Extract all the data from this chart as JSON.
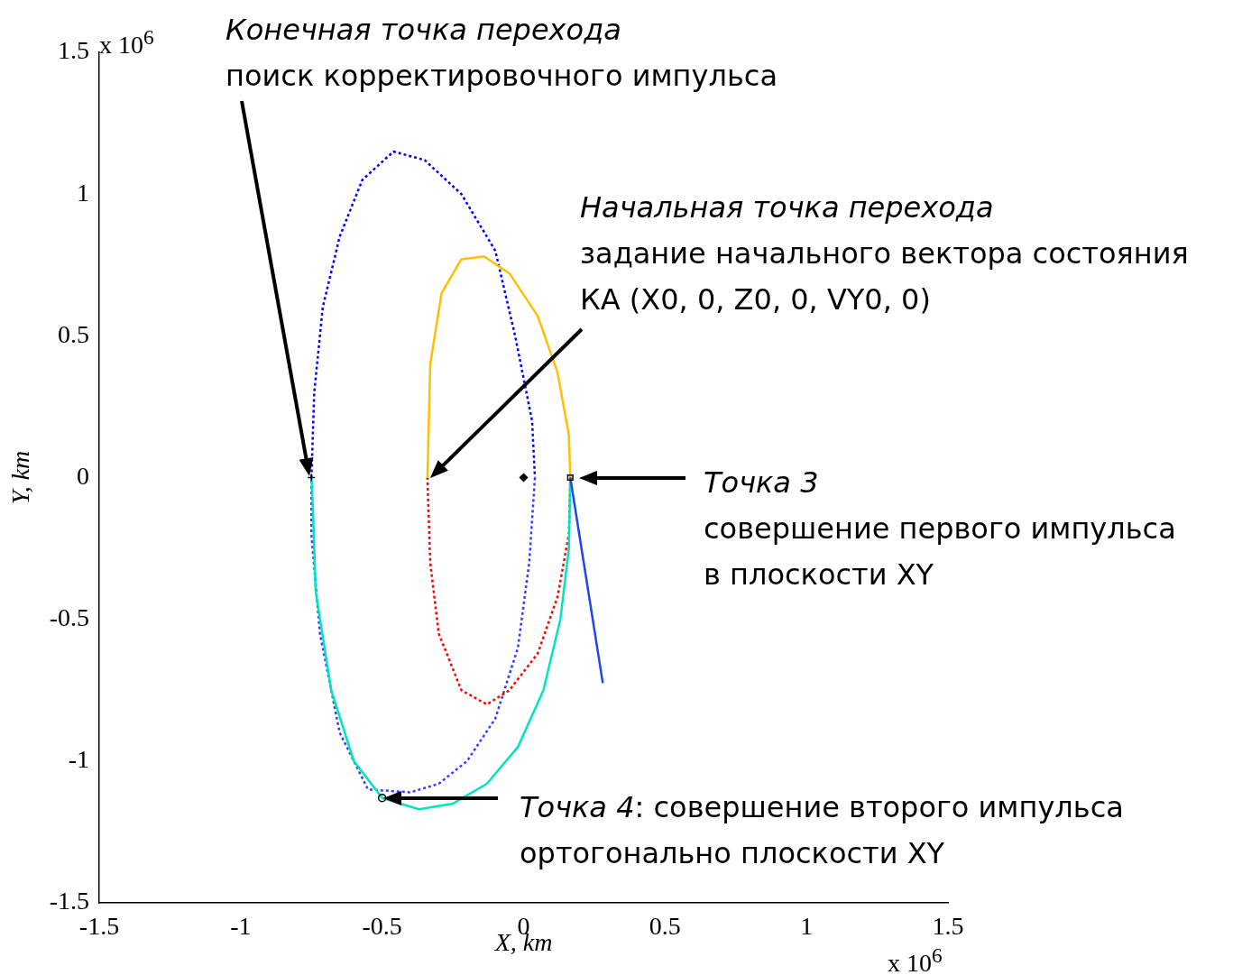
{
  "chart_data": {
    "type": "line",
    "xlabel": "X, km",
    "ylabel": "Y, km",
    "xlim": [
      -1.5,
      1.5
    ],
    "ylim": [
      -1.5,
      1.5
    ],
    "xticks": [
      -1.5,
      -1,
      -0.5,
      0,
      0.5,
      1,
      1.5
    ],
    "yticks": [
      -1.5,
      -1,
      -0.5,
      0,
      0.5,
      1,
      1.5
    ],
    "grid": false,
    "legend": false,
    "series": [
      {
        "line_style": "dotted",
        "marker": "none",
        "color": "#0000ff",
        "x": [
          -0.75,
          -0.74,
          -0.71,
          -0.65,
          -0.57,
          -0.46,
          -0.35,
          -0.22,
          -0.1,
          -0.03,
          0.03,
          0.04
        ],
        "values": [
          0,
          0.3,
          0.6,
          0.85,
          1.05,
          1.15,
          1.12,
          1.0,
          0.8,
          0.5,
          0.2,
          0
        ]
      },
      {
        "line_style": "dotted",
        "marker": "none",
        "color": "#3a3aff",
        "x": [
          0.04,
          0.02,
          -0.02,
          -0.1,
          -0.2,
          -0.3,
          -0.4,
          -0.55,
          -0.65,
          -0.72,
          -0.75,
          -0.75
        ],
        "values": [
          0,
          -0.3,
          -0.6,
          -0.85,
          -1.0,
          -1.08,
          -1.11,
          -1.1,
          -0.9,
          -0.55,
          -0.2,
          0
        ]
      },
      {
        "line_style": "dotted",
        "marker": "none",
        "color": "#ff0000",
        "x": [
          0.165,
          0.16,
          0.12,
          0.05,
          -0.05,
          -0.13,
          -0.22,
          -0.3,
          -0.33,
          -0.34
        ],
        "values": [
          0,
          -0.2,
          -0.42,
          -0.62,
          -0.75,
          -0.8,
          -0.75,
          -0.55,
          -0.3,
          0
        ]
      },
      {
        "line_style": "solid",
        "marker": "none",
        "color": "#ffc000",
        "x": [
          -0.34,
          -0.33,
          -0.29,
          -0.22,
          -0.14,
          -0.05,
          0.05,
          0.12,
          0.16,
          0.165
        ],
        "values": [
          0,
          0.4,
          0.65,
          0.77,
          0.78,
          0.72,
          0.57,
          0.37,
          0.15,
          0
        ]
      },
      {
        "line_style": "solid",
        "marker": "none",
        "color": "#00e5c0",
        "x": [
          0.165,
          0.16,
          0.13,
          0.07,
          -0.02,
          -0.13,
          -0.25,
          -0.37,
          -0.5,
          -0.6,
          -0.68,
          -0.735,
          -0.745,
          -0.75
        ],
        "values": [
          0,
          -0.25,
          -0.5,
          -0.75,
          -0.95,
          -1.08,
          -1.15,
          -1.17,
          -1.13,
          -1.0,
          -0.75,
          -0.4,
          -0.1,
          0
        ]
      },
      {
        "line_style": "solid",
        "marker": "none",
        "color": "#2244ee",
        "x": [
          0.165,
          0.28
        ],
        "values": [
          0,
          -0.725
        ]
      },
      {
        "type": "scatter",
        "marker": "diamond",
        "color": "#000000",
        "x": [
          0
        ],
        "values": [
          0
        ]
      },
      {
        "type": "scatter",
        "marker": "square",
        "color": "#000000",
        "x": [
          0.165
        ],
        "values": [
          0
        ]
      },
      {
        "type": "scatter",
        "marker": "circle",
        "color": "#000000",
        "x": [
          -0.5
        ],
        "values": [
          -1.13
        ]
      },
      {
        "type": "scatter",
        "marker": "cross",
        "color": "#000000",
        "x": [
          -0.75
        ],
        "values": [
          0
        ]
      }
    ],
    "annotations": [
      "Конечная точка перехода\nпоиск корректировочного импульса",
      "Начальная точка перехода\nзадание начального вектора состояния\nКА (X0, 0, Z0, 0, VY0, 0)",
      "Точка 3\nсовершение первого импульса\nв плоскости XY",
      "Точка 4: совершение второго импульса\nортогонально плоскости XY",
      "x 10$^{6}$",
      "x 10$^{6}$"
    ]
  }
}
